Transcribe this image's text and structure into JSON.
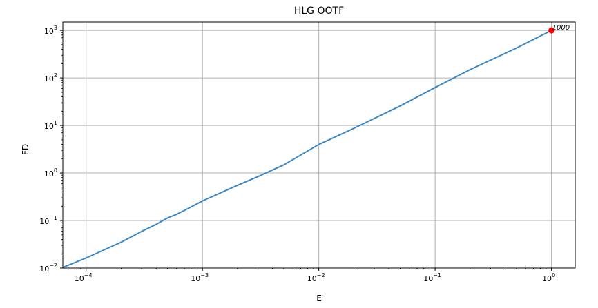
{
  "chart_data": {
    "type": "line",
    "title": "HLG OOTF",
    "xlabel": "E",
    "ylabel": "FD",
    "x_scale": "log",
    "y_scale": "log",
    "xlim": [
      6.31e-05,
      1.6
    ],
    "ylim": [
      0.01,
      1500
    ],
    "grid": true,
    "x_ticks": [
      {
        "value": 0.0001,
        "base": "10",
        "exp": "−4"
      },
      {
        "value": 0.001,
        "base": "10",
        "exp": "−3"
      },
      {
        "value": 0.01,
        "base": "10",
        "exp": "−2"
      },
      {
        "value": 0.1,
        "base": "10",
        "exp": "−1"
      },
      {
        "value": 1,
        "base": "10",
        "exp": "0"
      }
    ],
    "y_ticks": [
      {
        "value": 0.01,
        "base": "10",
        "exp": "−2"
      },
      {
        "value": 0.1,
        "base": "10",
        "exp": "−1"
      },
      {
        "value": 1,
        "base": "10",
        "exp": "0"
      },
      {
        "value": 10,
        "base": "10",
        "exp": "1"
      },
      {
        "value": 100,
        "base": "10",
        "exp": "2"
      },
      {
        "value": 1000,
        "base": "10",
        "exp": "3"
      }
    ],
    "series": [
      {
        "color": "#3b86c6",
        "x": [
          6.31e-05,
          0.0001,
          0.0002,
          0.0003,
          0.0004,
          0.0005,
          0.0006,
          0.0007,
          0.001,
          0.002,
          0.003,
          0.005,
          0.01,
          0.02,
          0.05,
          0.1,
          0.2,
          0.5,
          1
        ],
        "y": [
          0.0103,
          0.0163,
          0.035,
          0.059,
          0.083,
          0.113,
          0.135,
          0.163,
          0.258,
          0.55,
          0.84,
          1.48,
          3.98,
          8.7,
          25.7,
          63,
          150,
          425,
          1000
        ]
      }
    ],
    "highlight_point": {
      "x": 1,
      "y": 1000,
      "label": "1000",
      "color": "#ff0000"
    }
  }
}
